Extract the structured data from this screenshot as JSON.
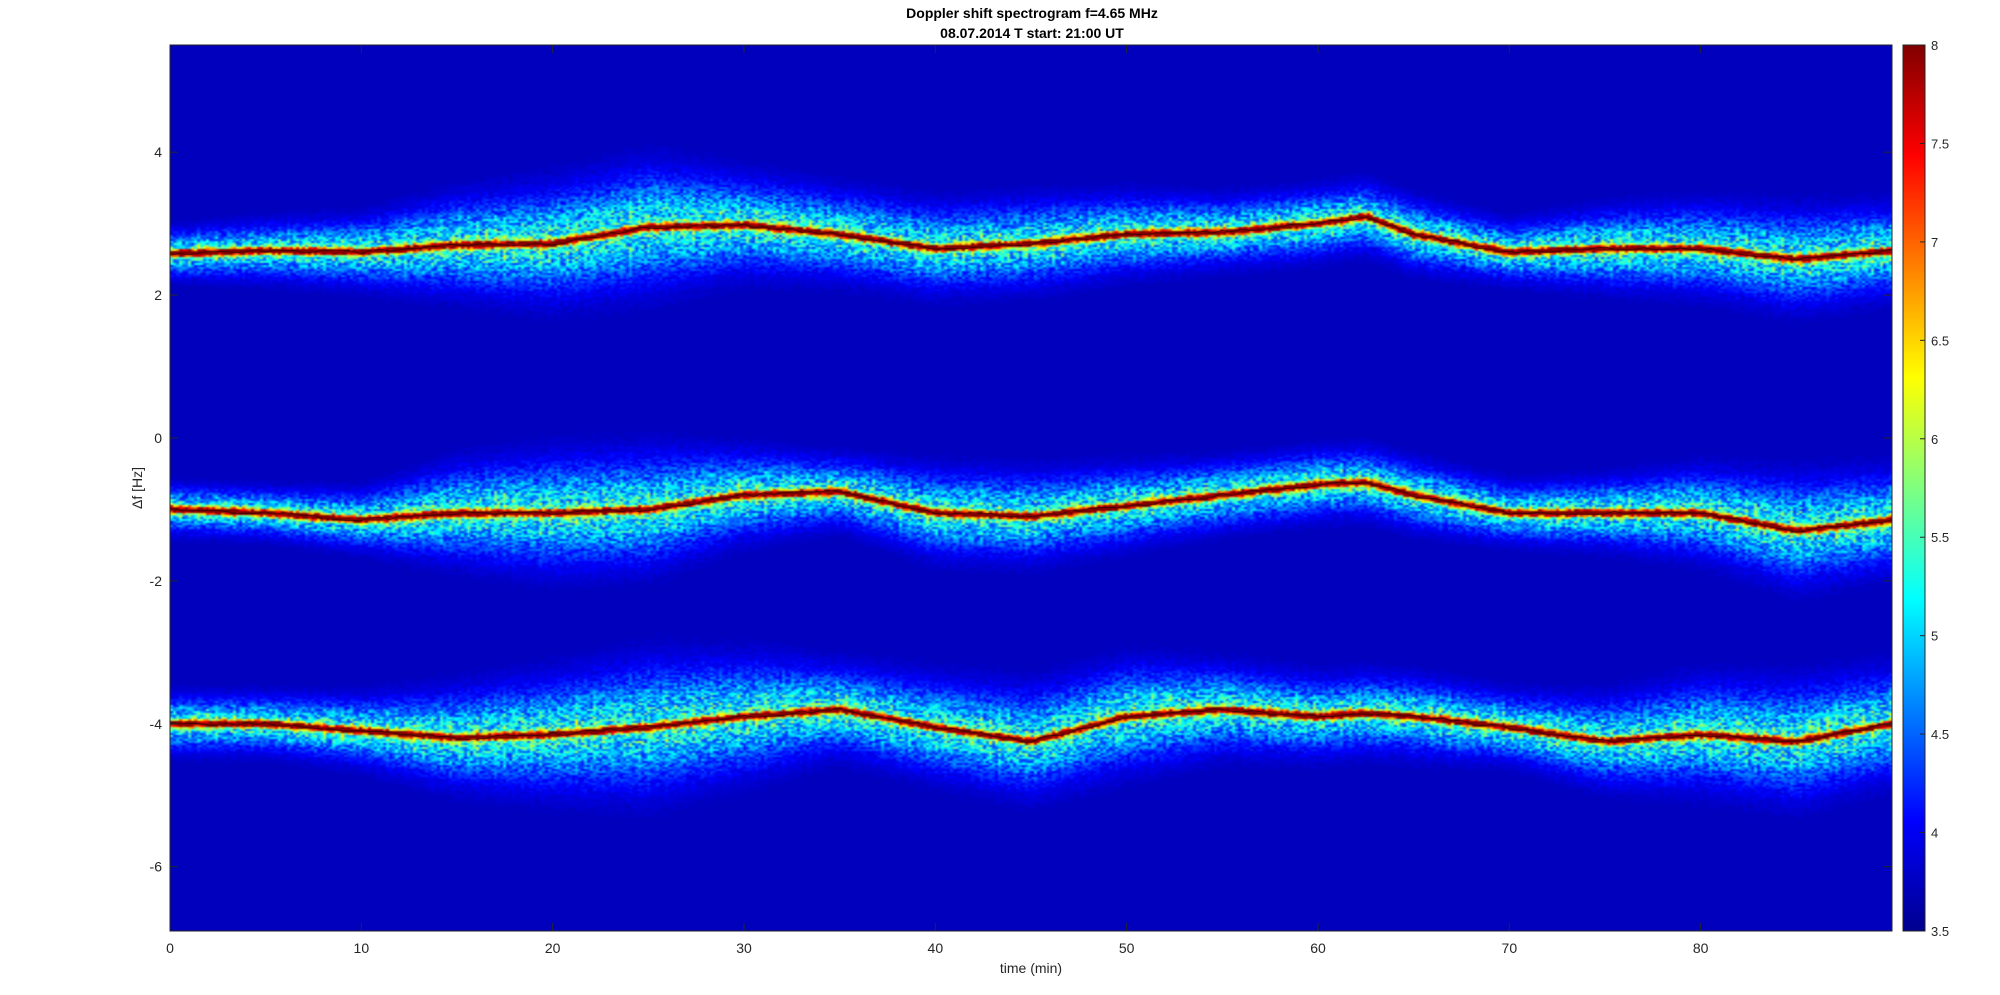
{
  "chart_data": {
    "type": "heatmap",
    "title": "Doppler shift spectrogram f=4.65 MHz",
    "subtitle": "08.07.2014   T start: 21:00 UT",
    "xlabel": "time (min)",
    "ylabel": "Δf [Hz]",
    "xlim": [
      0,
      90
    ],
    "ylim": [
      -6.9,
      5.5
    ],
    "x_ticks": [
      0,
      10,
      20,
      30,
      40,
      50,
      60,
      70,
      80
    ],
    "y_ticks": [
      -6,
      -4,
      -2,
      0,
      2,
      4
    ],
    "colormap": "jet",
    "color_range": [
      3.5,
      8
    ],
    "colorbar_ticks": [
      3.5,
      4,
      4.5,
      5,
      5.5,
      6,
      6.5,
      7,
      7.5,
      8
    ],
    "grid": false,
    "legend": "none",
    "traces": [
      {
        "t": [
          0,
          5,
          10,
          15,
          20,
          25,
          30,
          35,
          40,
          45,
          50,
          55,
          60,
          62.5,
          65,
          70,
          75,
          80,
          85,
          90
        ],
        "df": [
          2.58,
          2.62,
          2.6,
          2.7,
          2.72,
          2.95,
          2.98,
          2.85,
          2.65,
          2.72,
          2.85,
          2.88,
          3.0,
          3.1,
          2.85,
          2.6,
          2.65,
          2.65,
          2.5,
          2.62
        ],
        "spread": [
          0.25,
          0.3,
          0.35,
          0.5,
          0.6,
          0.65,
          0.5,
          0.45,
          0.45,
          0.45,
          0.4,
          0.35,
          0.35,
          0.35,
          0.35,
          0.3,
          0.4,
          0.45,
          0.5,
          0.45
        ]
      },
      {
        "t": [
          0,
          5,
          10,
          15,
          20,
          25,
          30,
          35,
          40,
          45,
          50,
          55,
          60,
          62.5,
          65,
          70,
          75,
          80,
          85,
          90
        ],
        "df": [
          -1.0,
          -1.05,
          -1.15,
          -1.05,
          -1.05,
          -1.0,
          -0.8,
          -0.75,
          -1.05,
          -1.1,
          -0.95,
          -0.8,
          -0.65,
          -0.62,
          -0.8,
          -1.05,
          -1.05,
          -1.05,
          -1.3,
          -1.15
        ],
        "spread": [
          0.25,
          0.25,
          0.3,
          0.5,
          0.6,
          0.6,
          0.45,
          0.35,
          0.45,
          0.45,
          0.4,
          0.35,
          0.35,
          0.35,
          0.35,
          0.3,
          0.35,
          0.45,
          0.55,
          0.5
        ]
      },
      {
        "t": [
          0,
          5,
          10,
          15,
          20,
          25,
          30,
          35,
          40,
          45,
          50,
          55,
          60,
          62.5,
          65,
          70,
          75,
          80,
          85,
          90
        ],
        "df": [
          -4.0,
          -4.0,
          -4.1,
          -4.2,
          -4.15,
          -4.05,
          -3.9,
          -3.8,
          -4.05,
          -4.25,
          -3.9,
          -3.8,
          -3.9,
          -3.85,
          -3.9,
          -4.05,
          -4.25,
          -4.15,
          -4.25,
          -4.0
        ],
        "spread": [
          0.3,
          0.3,
          0.35,
          0.5,
          0.6,
          0.7,
          0.6,
          0.45,
          0.5,
          0.55,
          0.55,
          0.45,
          0.4,
          0.4,
          0.4,
          0.35,
          0.45,
          0.55,
          0.6,
          0.55
        ]
      }
    ]
  }
}
